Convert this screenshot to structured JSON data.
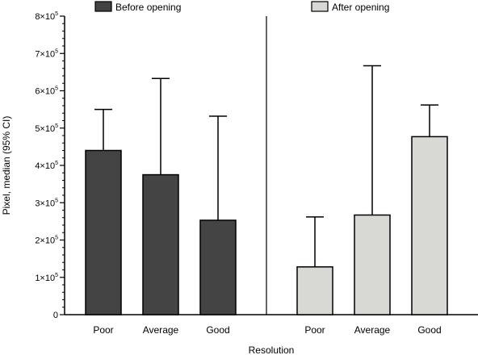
{
  "chart_data": {
    "type": "bar",
    "ylabel": "Pixel, median (95% CI)",
    "xlabel": "Resolution",
    "ylim": [
      0,
      800000
    ],
    "yticks": [
      {
        "value": 0,
        "base": "0",
        "exp": ""
      },
      {
        "value": 100000,
        "base": "1×10",
        "exp": "5"
      },
      {
        "value": 200000,
        "base": "2×10",
        "exp": "5"
      },
      {
        "value": 300000,
        "base": "3×10",
        "exp": "5"
      },
      {
        "value": 400000,
        "base": "4×10",
        "exp": "5"
      },
      {
        "value": 500000,
        "base": "5×10",
        "exp": "5"
      },
      {
        "value": 600000,
        "base": "6×10",
        "exp": "5"
      },
      {
        "value": 700000,
        "base": "7×10",
        "exp": "5"
      },
      {
        "value": 800000,
        "base": "8×10",
        "exp": "5"
      }
    ],
    "minor_ticks_per_interval": 4,
    "grid": false,
    "legend_position": "top",
    "series": [
      {
        "name": "Before opening",
        "color": "#444444",
        "categories": [
          "Poor",
          "Average",
          "Good"
        ],
        "values": [
          440000,
          375000,
          253000
        ],
        "ci_upper": [
          550000,
          633000,
          532000
        ]
      },
      {
        "name": "After opening",
        "color": "#d8d8d5",
        "categories": [
          "Poor",
          "Average",
          "Good"
        ],
        "values": [
          128000,
          267000,
          477000
        ],
        "ci_upper": [
          262000,
          667000,
          562000
        ]
      }
    ]
  }
}
